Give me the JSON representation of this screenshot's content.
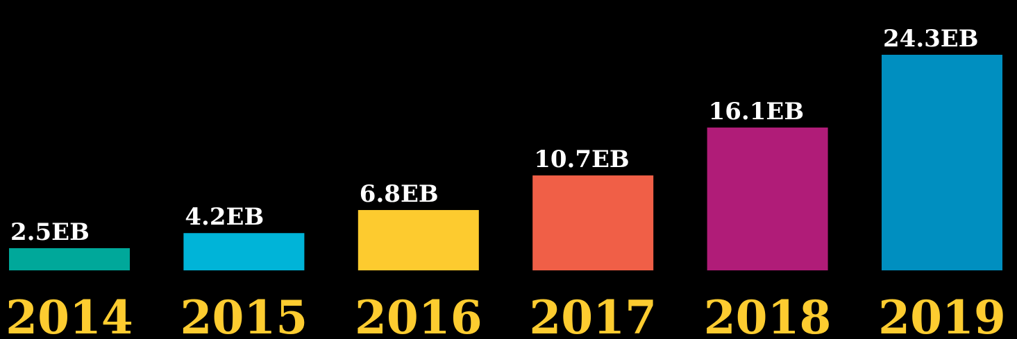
{
  "chart_data": {
    "type": "bar",
    "categories": [
      "2014",
      "2015",
      "2016",
      "2017",
      "2018",
      "2019"
    ],
    "values": [
      2.5,
      4.2,
      6.8,
      10.7,
      16.1,
      24.3
    ],
    "value_labels": [
      "2.5EB",
      "4.2EB",
      "6.8EB",
      "10.7EB",
      "16.1EB",
      "24.3EB"
    ],
    "colors": [
      "#00a89a",
      "#00b4d8",
      "#fdcb2f",
      "#f05f47",
      "#b01c78",
      "#008fc0"
    ]
  }
}
